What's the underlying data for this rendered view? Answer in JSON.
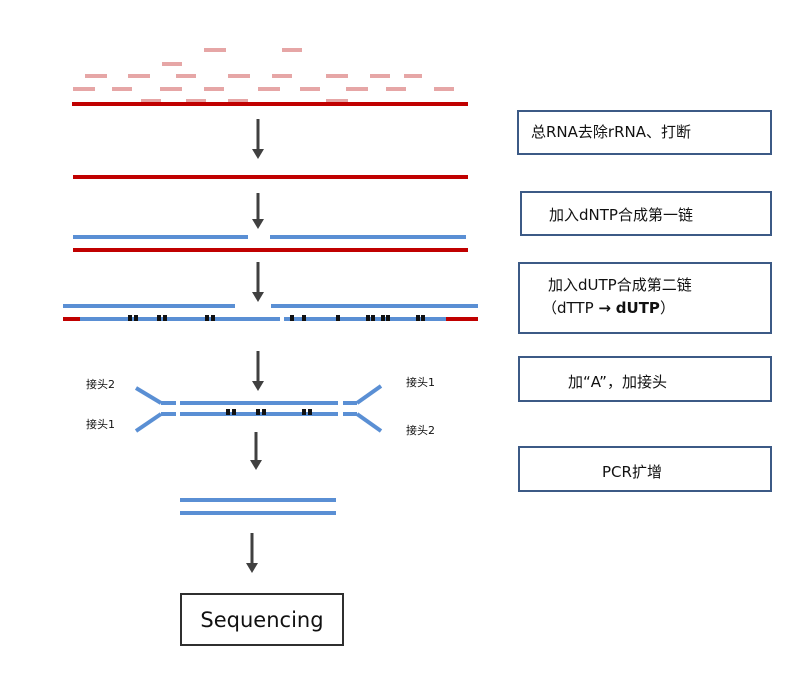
{
  "colors": {
    "rna_red": "#c00000",
    "rrna_pink": "#e6a6a6",
    "dna_blue": "#5a8fd4",
    "arrow": "#404040",
    "dutp_mark": "#111111",
    "box_border": "#3c5a86"
  },
  "steps": [
    {
      "text": "总RNA去除rRNA、打断"
    },
    {
      "text": "加入dNTP合成第一链"
    },
    {
      "line1": "加入dUTP合成第二链",
      "line2_prefix": "（dTTP",
      "line2_arrow": "→",
      "line2_bold": "dUTP",
      "line2_suffix": "）"
    },
    {
      "text": "加“A”，加接头"
    },
    {
      "text": "PCR扩增"
    }
  ],
  "adapters": {
    "left_top": "接头2",
    "left_bottom": "接头1",
    "right_top": "接头1",
    "right_bottom": "接头2"
  },
  "sequencing": {
    "label": "Sequencing"
  },
  "icons": {
    "arrow": "down-arrow-icon",
    "dutp": "dutp-mark-icon"
  }
}
